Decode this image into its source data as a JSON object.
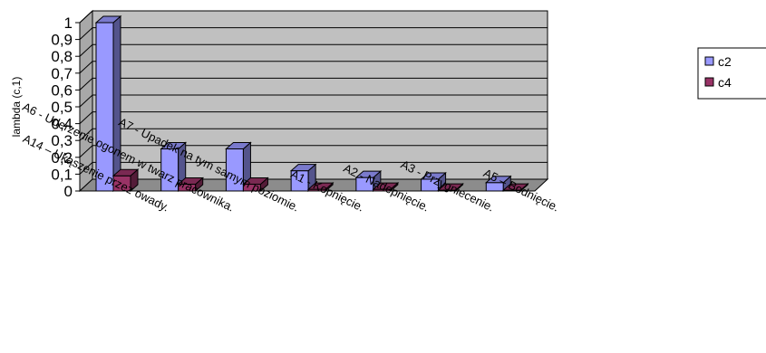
{
  "chart_data": {
    "type": "bar",
    "ylabel": "lambda (c,1)",
    "ylim": [
      0,
      1
    ],
    "yticks": [
      "0",
      "0,1",
      "0,2",
      "0,3",
      "0,4",
      "0,5",
      "0,6",
      "0,7",
      "0,8",
      "0,9",
      "1"
    ],
    "grid": true,
    "legend_position": "right",
    "categories": [
      "A14 – Ukąszenie przez owady.",
      "A6 - Uderzenie ogonem w twarz pracownika.",
      "A7 - Upadek na tym samym poziomie.",
      "A1 - Kopnięcie.",
      "A2 - Nadepnięcie.",
      "A3 - Przygniecenie.",
      "A5 – Bodnięcie."
    ],
    "series": [
      {
        "name": "c2",
        "color": "#9999ff",
        "values": [
          1.0,
          0.25,
          0.25,
          0.12,
          0.08,
          0.07,
          0.05
        ]
      },
      {
        "name": "c4",
        "color": "#993366",
        "values": [
          0.09,
          0.04,
          0.04,
          0.01,
          0.01,
          0.005,
          0.005
        ]
      }
    ],
    "wall_color": "#c0c0c0"
  }
}
